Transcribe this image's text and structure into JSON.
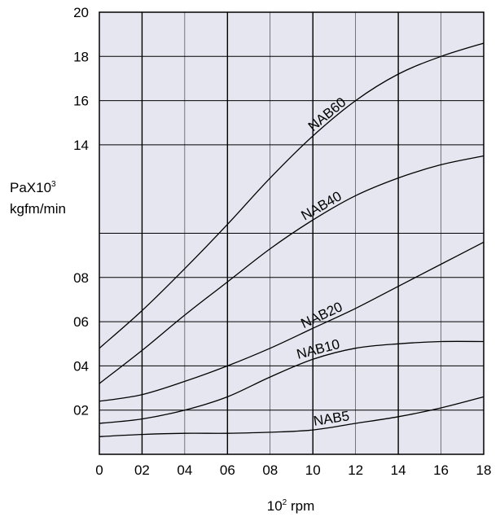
{
  "chart_data": {
    "type": "line",
    "x_ticks": [
      "0",
      "02",
      "04",
      "06",
      "08",
      "10",
      "12",
      "14",
      "16",
      "18"
    ],
    "x_values": [
      0,
      2,
      4,
      6,
      8,
      10,
      12,
      14,
      16,
      18
    ],
    "y_ticks": [
      "20",
      "18",
      "16",
      "14",
      "08",
      "06",
      "04",
      "02"
    ],
    "y_tick_rows": [
      20,
      18,
      16,
      14,
      8,
      6,
      4,
      2
    ],
    "xlabel": {
      "base": "10",
      "sup": "2",
      "rest": " rpm"
    },
    "ylabel": {
      "line1": "PaX10",
      "sup": "3",
      "line2": "kgfm/min"
    },
    "xlim": [
      0,
      18
    ],
    "ylim": [
      0,
      20
    ],
    "grid": true,
    "colors": {
      "plot_bg": "#e6e6f0",
      "grid": "#000000",
      "curve": "#000000"
    },
    "series": [
      {
        "name": "NAB60",
        "x": [
          0,
          2,
          4,
          6,
          8,
          10,
          12,
          14,
          16,
          18
        ],
        "y": [
          4.8,
          6.5,
          8.4,
          10.4,
          12.5,
          14.4,
          16.0,
          17.2,
          18.0,
          18.6
        ]
      },
      {
        "name": "NAB40",
        "x": [
          0,
          2,
          4,
          6,
          8,
          10,
          12,
          14,
          16,
          18
        ],
        "y": [
          3.2,
          4.7,
          6.3,
          7.8,
          9.3,
          10.6,
          11.7,
          12.5,
          13.1,
          13.5
        ]
      },
      {
        "name": "NAB20",
        "x": [
          0,
          2,
          4,
          6,
          8,
          10,
          12,
          14,
          16,
          18
        ],
        "y": [
          2.4,
          2.7,
          3.3,
          4.0,
          4.8,
          5.7,
          6.6,
          7.6,
          8.6,
          9.6
        ]
      },
      {
        "name": "NAB10",
        "x": [
          0,
          2,
          4,
          6,
          8,
          10,
          12,
          14,
          16,
          18
        ],
        "y": [
          1.4,
          1.6,
          2.0,
          2.6,
          3.5,
          4.3,
          4.8,
          5.0,
          5.1,
          5.1
        ]
      },
      {
        "name": "NAB5",
        "x": [
          0,
          2,
          4,
          6,
          8,
          10,
          12,
          14,
          16,
          18
        ],
        "y": [
          0.8,
          0.9,
          0.95,
          0.95,
          1.0,
          1.1,
          1.4,
          1.7,
          2.1,
          2.6
        ]
      }
    ]
  }
}
